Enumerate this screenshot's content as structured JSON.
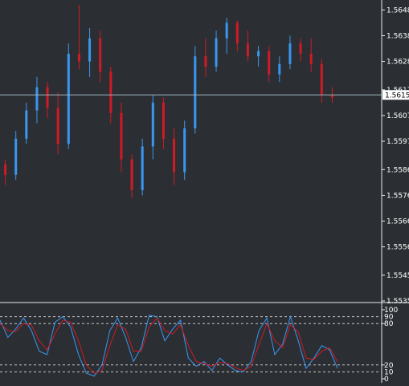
{
  "colors": {
    "background": "#2b2f33",
    "up_candle": "#3a96f2",
    "down_candle": "#d01a26",
    "grid_axis": "#e8e8e8",
    "price_line": "#9fb8c0",
    "stoch_main": "#3a96f2",
    "stoch_signal": "#d01a26",
    "level_line": "#c8c8c8",
    "label_text": "#ffffff",
    "current_label_bg": "#ffffff",
    "current_label_text": "#000000"
  },
  "price_axis": {
    "ticks": [
      "1.5648",
      "1.5638",
      "1.5628",
      "1.5617",
      "1.5607",
      "1.5597",
      "1.5586",
      "1.5576",
      "1.5566",
      "1.5556",
      "1.5545",
      "1.5535"
    ],
    "current_price": "1.5615"
  },
  "oscillator": {
    "levels": [
      "100",
      "80",
      "20",
      "0"
    ],
    "level_extra": [
      "90",
      "10"
    ]
  },
  "chart_data": [
    {
      "type": "candlestick",
      "ylim": [
        1.5535,
        1.565
      ],
      "current_price": 1.5615,
      "candles_ohlc_approx": [
        [
          1.5588,
          1.559,
          1.558,
          1.5584
        ],
        [
          1.5584,
          1.5601,
          1.5582,
          1.5598
        ],
        [
          1.5598,
          1.5612,
          1.5596,
          1.5609
        ],
        [
          1.5609,
          1.5622,
          1.5604,
          1.5618
        ],
        [
          1.5618,
          1.562,
          1.5606,
          1.561
        ],
        [
          1.561,
          1.5616,
          1.5592,
          1.5596
        ],
        [
          1.5596,
          1.5635,
          1.5594,
          1.5631
        ],
        [
          1.5631,
          1.565,
          1.5625,
          1.5628
        ],
        [
          1.5628,
          1.5641,
          1.5622,
          1.5637
        ],
        [
          1.5637,
          1.564,
          1.562,
          1.5624
        ],
        [
          1.5624,
          1.5626,
          1.5604,
          1.5608
        ],
        [
          1.5608,
          1.5612,
          1.5585,
          1.559
        ],
        [
          1.559,
          1.5592,
          1.5575,
          1.5578
        ],
        [
          1.5578,
          1.5598,
          1.5576,
          1.5595
        ],
        [
          1.5595,
          1.5615,
          1.559,
          1.5612
        ],
        [
          1.5612,
          1.5614,
          1.5594,
          1.5598
        ],
        [
          1.5598,
          1.5602,
          1.558,
          1.5585
        ],
        [
          1.5585,
          1.5605,
          1.5582,
          1.5602
        ],
        [
          1.5602,
          1.5634,
          1.56,
          1.563
        ],
        [
          1.563,
          1.5637,
          1.5622,
          1.5626
        ],
        [
          1.5626,
          1.564,
          1.5624,
          1.5637
        ],
        [
          1.5637,
          1.5645,
          1.5631,
          1.5643
        ],
        [
          1.5643,
          1.5644,
          1.5632,
          1.5635
        ],
        [
          1.5635,
          1.564,
          1.5628,
          1.563
        ],
        [
          1.563,
          1.5634,
          1.5626,
          1.5632
        ],
        [
          1.5632,
          1.5634,
          1.562,
          1.5623
        ],
        [
          1.5623,
          1.563,
          1.562,
          1.5627
        ],
        [
          1.5627,
          1.5638,
          1.5625,
          1.5635
        ],
        [
          1.5635,
          1.5637,
          1.5628,
          1.5631
        ],
        [
          1.5631,
          1.5637,
          1.5624,
          1.5627
        ],
        [
          1.5627,
          1.5629,
          1.5612,
          1.5615
        ],
        [
          1.5615,
          1.5618,
          1.5612,
          1.5614
        ]
      ]
    },
    {
      "type": "line",
      "ylim": [
        0,
        100
      ],
      "levels": [
        100,
        90,
        80,
        20,
        10,
        0
      ],
      "series": [
        {
          "role": "main",
          "values": [
            85,
            60,
            72,
            88,
            70,
            40,
            35,
            82,
            90,
            75,
            35,
            8,
            4,
            20,
            70,
            88,
            60,
            25,
            45,
            92,
            90,
            55,
            72,
            85,
            30,
            18,
            25,
            12,
            30,
            20,
            12,
            10,
            25,
            70,
            88,
            35,
            50,
            90,
            55,
            15,
            30,
            48,
            42,
            15
          ]
        },
        {
          "role": "signal",
          "values": [
            80,
            70,
            68,
            80,
            78,
            55,
            42,
            65,
            85,
            82,
            55,
            20,
            8,
            12,
            48,
            78,
            72,
            40,
            40,
            75,
            88,
            70,
            65,
            78,
            48,
            25,
            22,
            18,
            24,
            22,
            16,
            12,
            18,
            50,
            80,
            55,
            45,
            78,
            68,
            30,
            28,
            40,
            45,
            25
          ]
        }
      ]
    }
  ]
}
